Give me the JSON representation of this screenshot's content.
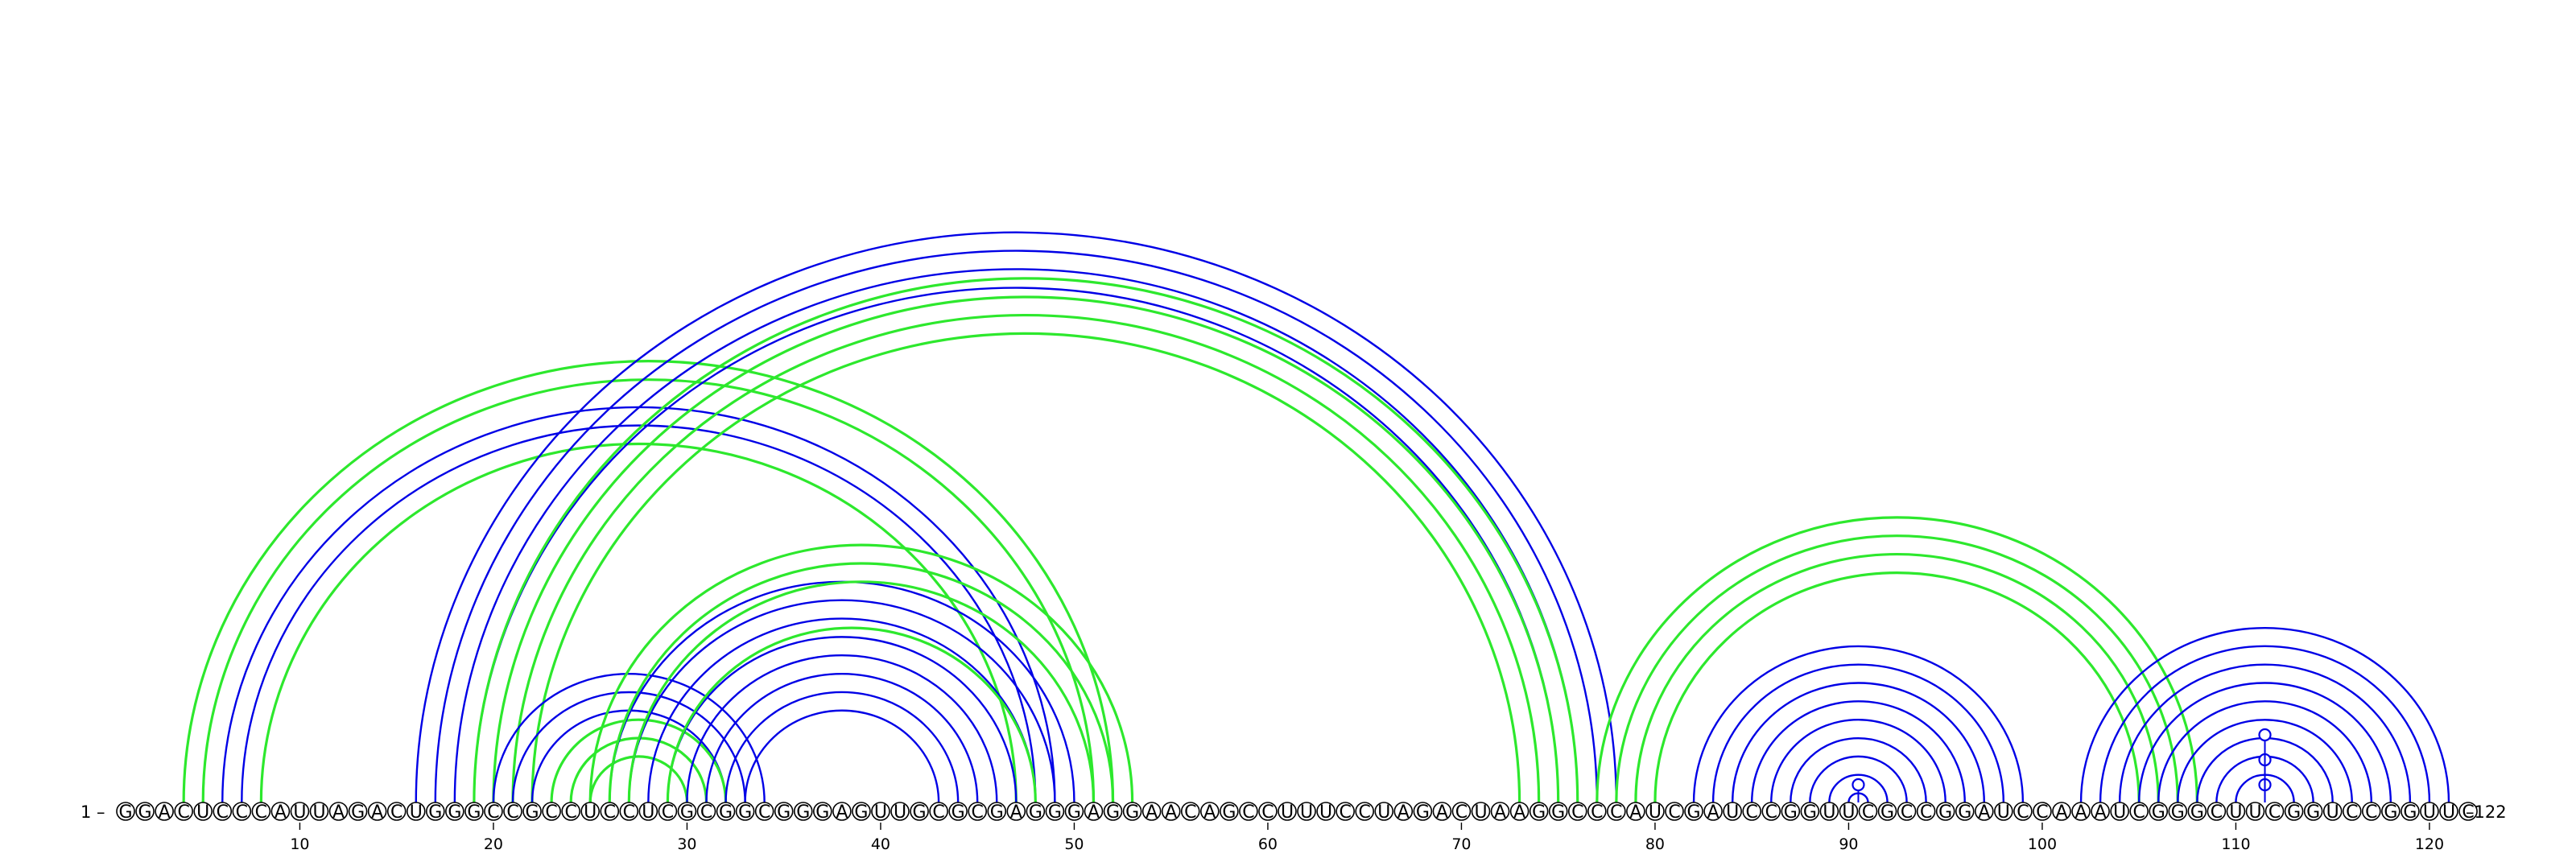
{
  "sequence": "GGACUCCCAUUAGACUGGGCCGCCUCCUCGCGGCGGGAGUUGCGCGAGGGAGGAACAGCCUUUCCUAGACUAAGGCCCAUCGAUCCGGUUCGCCGGAUCCAAAUCGGGCUUCGGUCCGGUUC",
  "start_label": "1 –",
  "end_label": "–122",
  "ticks": [
    10,
    20,
    30,
    40,
    50,
    60,
    70,
    80,
    90,
    100,
    110,
    120
  ],
  "colors": {
    "blue": "#0000e6",
    "green": "#2de82d"
  },
  "arcs": [
    {
      "color": "green",
      "i": 4,
      "j": 52
    },
    {
      "color": "green",
      "i": 5,
      "j": 51
    },
    {
      "color": "blue",
      "i": 6,
      "j": 49
    },
    {
      "color": "blue",
      "i": 7,
      "j": 48
    },
    {
      "color": "green",
      "i": 8,
      "j": 47
    },
    {
      "color": "blue",
      "i": 16,
      "j": 78
    },
    {
      "color": "blue",
      "i": 17,
      "j": 77
    },
    {
      "color": "blue",
      "i": 18,
      "j": 76
    },
    {
      "color": "blue",
      "i": 19,
      "j": 75
    },
    {
      "color": "green",
      "i": 19,
      "j": 76
    },
    {
      "color": "green",
      "i": 20,
      "j": 75
    },
    {
      "color": "green",
      "i": 21,
      "j": 74
    },
    {
      "color": "green",
      "i": 22,
      "j": 73
    },
    {
      "color": "blue",
      "i": 20,
      "j": 34
    },
    {
      "color": "blue",
      "i": 21,
      "j": 33
    },
    {
      "color": "blue",
      "i": 22,
      "j": 32
    },
    {
      "color": "green",
      "i": 23,
      "j": 32
    },
    {
      "color": "green",
      "i": 24,
      "j": 31
    },
    {
      "color": "green",
      "i": 25,
      "j": 30
    },
    {
      "color": "blue",
      "i": 26,
      "j": 50
    },
    {
      "color": "blue",
      "i": 27,
      "j": 49
    },
    {
      "color": "blue",
      "i": 28,
      "j": 48
    },
    {
      "color": "blue",
      "i": 29,
      "j": 47
    },
    {
      "color": "blue",
      "i": 30,
      "j": 46
    },
    {
      "color": "blue",
      "i": 31,
      "j": 45
    },
    {
      "color": "blue",
      "i": 32,
      "j": 44
    },
    {
      "color": "blue",
      "i": 33,
      "j": 43
    },
    {
      "color": "green",
      "i": 25,
      "j": 53
    },
    {
      "color": "green",
      "i": 26,
      "j": 52
    },
    {
      "color": "green",
      "i": 27,
      "j": 51
    },
    {
      "color": "green",
      "i": 29,
      "j": 48
    },
    {
      "color": "green",
      "i": 77,
      "j": 108
    },
    {
      "color": "green",
      "i": 78,
      "j": 107
    },
    {
      "color": "green",
      "i": 79,
      "j": 106
    },
    {
      "color": "green",
      "i": 80,
      "j": 105
    },
    {
      "color": "blue",
      "i": 82,
      "j": 99
    },
    {
      "color": "blue",
      "i": 83,
      "j": 98
    },
    {
      "color": "blue",
      "i": 84,
      "j": 97
    },
    {
      "color": "blue",
      "i": 85,
      "j": 96
    },
    {
      "color": "blue",
      "i": 86,
      "j": 95
    },
    {
      "color": "blue",
      "i": 87,
      "j": 94
    },
    {
      "color": "blue",
      "i": 88,
      "j": 93
    },
    {
      "color": "blue",
      "i": 89,
      "j": 92
    },
    {
      "color": "blue",
      "i": 90,
      "j": 91
    },
    {
      "color": "blue",
      "i": 102,
      "j": 121
    },
    {
      "color": "blue",
      "i": 103,
      "j": 120
    },
    {
      "color": "blue",
      "i": 104,
      "j": 119
    },
    {
      "color": "blue",
      "i": 105,
      "j": 118
    },
    {
      "color": "blue",
      "i": 106,
      "j": 117
    },
    {
      "color": "blue",
      "i": 107,
      "j": 116
    },
    {
      "color": "blue",
      "i": 108,
      "j": 115
    },
    {
      "color": "blue",
      "i": 109,
      "j": 114
    },
    {
      "color": "blue",
      "i": 110,
      "j": 113
    }
  ],
  "pins": [
    {
      "color": "blue",
      "pos": 90.5,
      "level": 1
    },
    {
      "color": "blue",
      "pos": 111.5,
      "level": 1
    },
    {
      "color": "blue",
      "pos": 111.5,
      "level": 2
    },
    {
      "color": "blue",
      "pos": 111.5,
      "level": 3
    }
  ]
}
